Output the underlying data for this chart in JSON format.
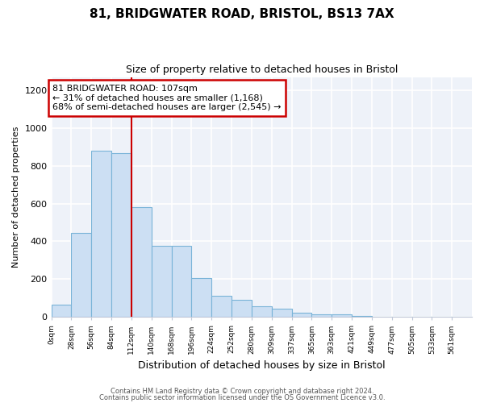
{
  "title_line1": "81, BRIDGWATER ROAD, BRISTOL, BS13 7AX",
  "title_line2": "Size of property relative to detached houses in Bristol",
  "xlabel": "Distribution of detached houses by size in Bristol",
  "ylabel": "Number of detached properties",
  "bin_labels": [
    "0sqm",
    "28sqm",
    "56sqm",
    "84sqm",
    "112sqm",
    "140sqm",
    "168sqm",
    "196sqm",
    "224sqm",
    "252sqm",
    "280sqm",
    "309sqm",
    "337sqm",
    "365sqm",
    "393sqm",
    "421sqm",
    "449sqm",
    "477sqm",
    "505sqm",
    "533sqm",
    "561sqm"
  ],
  "bar_values": [
    67,
    443,
    878,
    866,
    580,
    375,
    375,
    205,
    113,
    90,
    55,
    42,
    22,
    15,
    13,
    5,
    2,
    1,
    1,
    1,
    0
  ],
  "bar_color": "#ccdff3",
  "bar_edge_color": "#7ab4d8",
  "bin_width": 28,
  "vline_x": 112,
  "vline_color": "#cc0000",
  "annotation_text": "81 BRIDGWATER ROAD: 107sqm\n← 31% of detached houses are smaller (1,168)\n68% of semi-detached houses are larger (2,545) →",
  "annotation_box_edge_color": "#cc0000",
  "ylim": [
    0,
    1270
  ],
  "yticks": [
    0,
    200,
    400,
    600,
    800,
    1000,
    1200
  ],
  "footer_line1": "Contains HM Land Registry data © Crown copyright and database right 2024.",
  "footer_line2": "Contains public sector information licensed under the OS Government Licence v3.0.",
  "background_color": "#eef2f9",
  "grid_color": "#ffffff",
  "spine_color": "#c0c8d8"
}
